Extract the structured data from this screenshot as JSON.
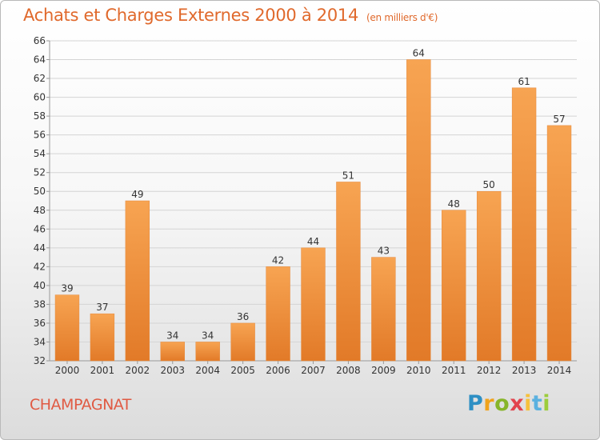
{
  "header": {
    "title": "Achats et Charges Externes 2000 à 2014",
    "unit": "(en milliers d'€)"
  },
  "footer": {
    "commune": "CHAMPAGNAT",
    "logo_letters": [
      "P",
      "r",
      "o",
      "x",
      "i",
      "t",
      "i"
    ]
  },
  "colors": {
    "title": "#e0692c",
    "bar_light": "#f7a452",
    "bar_dark": "#e27a28",
    "grid": "#d4d4d4"
  },
  "chart_data": {
    "type": "bar",
    "categories": [
      "2000",
      "2001",
      "2002",
      "2003",
      "2004",
      "2005",
      "2006",
      "2007",
      "2008",
      "2009",
      "2010",
      "2011",
      "2012",
      "2013",
      "2014"
    ],
    "values": [
      39,
      37,
      49,
      34,
      34,
      36,
      42,
      44,
      51,
      43,
      64,
      48,
      50,
      61,
      57
    ],
    "data_labels": [
      "39",
      "37",
      "49",
      "34",
      "34",
      "36",
      "42",
      "44",
      "51",
      "43",
      "64",
      "48",
      "50",
      "61",
      "57"
    ],
    "y_ticks": [
      "32",
      "34",
      "36",
      "38",
      "40",
      "42",
      "44",
      "46",
      "48",
      "50",
      "52",
      "54",
      "56",
      "58",
      "60",
      "62",
      "64",
      "66"
    ],
    "ylim": [
      32,
      66
    ],
    "grid": true
  }
}
